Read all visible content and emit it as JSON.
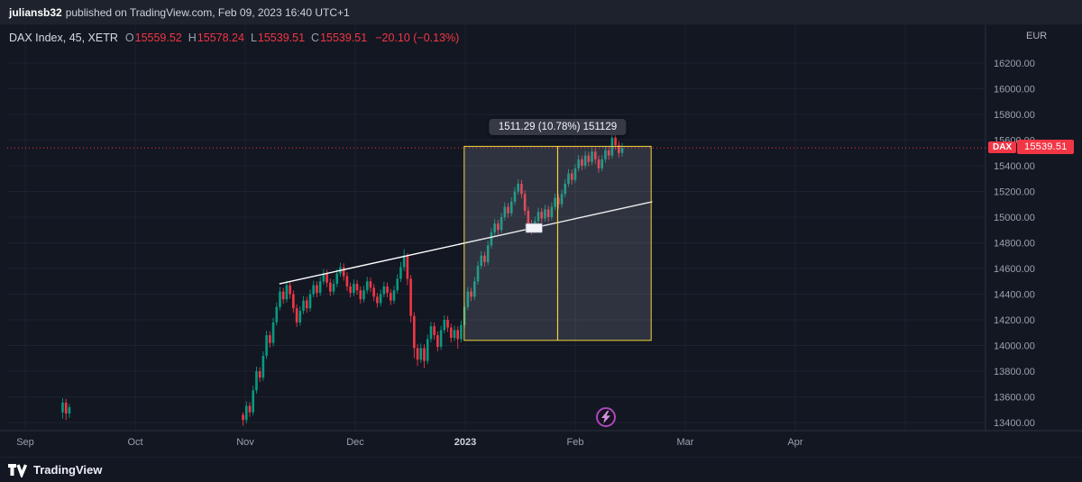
{
  "publish_bar": {
    "username": "juliansb32",
    "text": "published on TradingView.com, Feb 09, 2023 16:40 UTC+1"
  },
  "header": {
    "symbol": "DAX Index, 45, XETR",
    "ohlc": [
      {
        "label": "O",
        "value": "15559.52"
      },
      {
        "label": "H",
        "value": "15578.24"
      },
      {
        "label": "L",
        "value": "15539.51"
      },
      {
        "label": "C",
        "value": "15539.51"
      }
    ],
    "change": "−20.10 (−0.13%)"
  },
  "axis": {
    "currency": "EUR",
    "time_ticks": [
      {
        "label": "Sep",
        "t": 0
      },
      {
        "label": "Oct",
        "t": 1
      },
      {
        "label": "Nov",
        "t": 2
      },
      {
        "label": "Dec",
        "t": 3
      },
      {
        "label": "2023",
        "t": 4
      },
      {
        "label": "Feb",
        "t": 5
      },
      {
        "label": "Mar",
        "t": 6
      },
      {
        "label": "Apr",
        "t": 7
      }
    ]
  },
  "price_label": {
    "tag": "DAX",
    "value": "15539.51",
    "color": "#f23645"
  },
  "footer": {
    "brand": "TradingView"
  },
  "chart_data": {
    "type": "candlestick",
    "title": "DAX Index, 45, XETR",
    "interval_minutes": 45,
    "exchange": "XETR",
    "currency": "EUR",
    "ohlc_current": {
      "open": 15559.52,
      "high": 15578.24,
      "low": 15539.51,
      "close": 15539.51,
      "change": -20.1,
      "change_pct": -0.13
    },
    "last_price": 15539.51,
    "ylim": [
      13300,
      16300
    ],
    "price_gridlines": [
      16200,
      16000,
      15800,
      15600,
      15400,
      15200,
      15000,
      14800,
      14600,
      14400,
      14200,
      14000,
      13800,
      13600,
      13400
    ],
    "x_months": [
      "Sep",
      "Oct",
      "Nov",
      "Dec",
      "2023",
      "Feb",
      "Mar",
      "Apr"
    ],
    "colors": {
      "up": "#089981",
      "down": "#f23645",
      "tool_yellow": "#f0d43f",
      "trend_white": "#ffffff"
    },
    "clusters": [
      {
        "t0": 0.34,
        "dt": 0.0305,
        "candles": [
          [
            13480,
            13590,
            13430,
            13555
          ],
          [
            13555,
            13585,
            13420,
            13470
          ],
          [
            13470,
            13545,
            13435,
            13520
          ]
        ]
      },
      {
        "t0": 1.98,
        "dt": 0.0305,
        "candles": [
          [
            13460,
            13480,
            13375,
            13420
          ],
          [
            13420,
            13565,
            13395,
            13530
          ],
          [
            13530,
            13560,
            13445,
            13480
          ],
          [
            13480,
            13685,
            13455,
            13650
          ],
          [
            13650,
            13835,
            13625,
            13800
          ],
          [
            13800,
            13830,
            13715,
            13750
          ],
          [
            13750,
            13955,
            13725,
            13920
          ],
          [
            13920,
            14115,
            13895,
            14080
          ],
          [
            14080,
            14110,
            13985,
            14020
          ],
          [
            14020,
            14215,
            13995,
            14180
          ],
          [
            14180,
            14335,
            14155,
            14300
          ],
          [
            14300,
            14455,
            14275,
            14420
          ],
          [
            14420,
            14450,
            14325,
            14360
          ],
          [
            14360,
            14505,
            14335,
            14470
          ],
          [
            14470,
            14500,
            14365,
            14400
          ],
          [
            14400,
            14430,
            14255,
            14290
          ],
          [
            14290,
            14320,
            14145,
            14180
          ],
          [
            14180,
            14305,
            14155,
            14270
          ],
          [
            14270,
            14385,
            14245,
            14350
          ],
          [
            14350,
            14380,
            14255,
            14290
          ],
          [
            14290,
            14435,
            14265,
            14400
          ],
          [
            14400,
            14505,
            14375,
            14470
          ],
          [
            14470,
            14500,
            14375,
            14410
          ],
          [
            14410,
            14535,
            14385,
            14500
          ],
          [
            14500,
            14595,
            14475,
            14560
          ],
          [
            14560,
            14590,
            14455,
            14490
          ],
          [
            14490,
            14520,
            14385,
            14420
          ],
          [
            14420,
            14515,
            14395,
            14480
          ],
          [
            14480,
            14595,
            14455,
            14560
          ],
          [
            14560,
            14645,
            14535,
            14610
          ],
          [
            14610,
            14640,
            14505,
            14540
          ],
          [
            14540,
            14570,
            14425,
            14460
          ],
          [
            14460,
            14490,
            14375,
            14410
          ],
          [
            14410,
            14515,
            14385,
            14480
          ],
          [
            14480,
            14510,
            14395,
            14430
          ],
          [
            14430,
            14460,
            14325,
            14360
          ],
          [
            14360,
            14465,
            14335,
            14430
          ],
          [
            14430,
            14535,
            14405,
            14500
          ],
          [
            14500,
            14530,
            14415,
            14450
          ],
          [
            14450,
            14480,
            14345,
            14380
          ],
          [
            14380,
            14410,
            14295,
            14330
          ],
          [
            14330,
            14435,
            14305,
            14400
          ],
          [
            14400,
            14495,
            14375,
            14460
          ],
          [
            14460,
            14490,
            14375,
            14410
          ],
          [
            14410,
            14440,
            14315,
            14350
          ],
          [
            14350,
            14465,
            14325,
            14430
          ],
          [
            14430,
            14555,
            14405,
            14520
          ],
          [
            14520,
            14650,
            14495,
            14610
          ],
          [
            14610,
            14750,
            14580,
            14700
          ],
          [
            14700,
            14720,
            14470,
            14520
          ],
          [
            14520,
            14550,
            14180,
            14230
          ],
          [
            14230,
            14260,
            13900,
            13980
          ],
          [
            13980,
            14010,
            13840,
            13890
          ],
          [
            13890,
            14015,
            13865,
            13980
          ],
          [
            13980,
            14010,
            13825,
            13880
          ],
          [
            13880,
            14085,
            13855,
            14050
          ],
          [
            14050,
            14185,
            14025,
            14150
          ],
          [
            14150,
            14180,
            14045,
            14080
          ],
          [
            14080,
            14110,
            13955,
            13990
          ],
          [
            13990,
            14155,
            13965,
            14120
          ],
          [
            14120,
            14235,
            14095,
            14200
          ],
          [
            14200,
            14230,
            14105,
            14140
          ],
          [
            14140,
            14170,
            14025,
            14060
          ],
          [
            14060,
            14155,
            14035,
            14120
          ],
          [
            14120,
            14150,
            13975,
            14050
          ],
          [
            14050,
            14195,
            14025,
            14160
          ],
          [
            14160,
            14335,
            14135,
            14300
          ],
          [
            14300,
            14455,
            14275,
            14420
          ],
          [
            14420,
            14450,
            14345,
            14380
          ],
          [
            14380,
            14535,
            14355,
            14500
          ],
          [
            14500,
            14655,
            14475,
            14620
          ],
          [
            14620,
            14735,
            14595,
            14700
          ],
          [
            14700,
            14730,
            14615,
            14650
          ],
          [
            14650,
            14815,
            14625,
            14780
          ],
          [
            14780,
            14915,
            14755,
            14880
          ],
          [
            14880,
            14985,
            14855,
            14950
          ],
          [
            14950,
            14980,
            14865,
            14900
          ],
          [
            14900,
            15035,
            14875,
            15000
          ],
          [
            15000,
            15115,
            14975,
            15080
          ],
          [
            15080,
            15110,
            14995,
            15030
          ],
          [
            15030,
            15155,
            15005,
            15120
          ],
          [
            15120,
            15235,
            15095,
            15200
          ],
          [
            15200,
            15295,
            15175,
            15260
          ],
          [
            15260,
            15290,
            15145,
            15180
          ],
          [
            15180,
            15210,
            15015,
            15050
          ],
          [
            15050,
            15080,
            14900,
            14950
          ],
          [
            14950,
            14980,
            14865,
            14900
          ],
          [
            14900,
            15005,
            14875,
            14970
          ],
          [
            14970,
            15075,
            14945,
            15040
          ],
          [
            15040,
            15070,
            14955,
            14990
          ],
          [
            14990,
            15095,
            14965,
            15060
          ],
          [
            15060,
            15090,
            14965,
            15000
          ],
          [
            15000,
            15115,
            14975,
            15080
          ],
          [
            15080,
            15185,
            15055,
            15150
          ],
          [
            15150,
            15180,
            15065,
            15100
          ],
          [
            15100,
            15215,
            15075,
            15180
          ],
          [
            15180,
            15295,
            15155,
            15260
          ],
          [
            15260,
            15375,
            15235,
            15340
          ],
          [
            15340,
            15370,
            15255,
            15290
          ],
          [
            15290,
            15415,
            15265,
            15380
          ],
          [
            15380,
            15485,
            15355,
            15450
          ],
          [
            15450,
            15480,
            15365,
            15400
          ],
          [
            15400,
            15515,
            15375,
            15480
          ],
          [
            15480,
            15510,
            15395,
            15430
          ],
          [
            15430,
            15545,
            15405,
            15510
          ],
          [
            15510,
            15540,
            15415,
            15450
          ],
          [
            15450,
            15480,
            15345,
            15380
          ],
          [
            15380,
            15485,
            15355,
            15450
          ],
          [
            15450,
            15555,
            15425,
            15520
          ],
          [
            15520,
            15550,
            15445,
            15480
          ],
          [
            15480,
            15690,
            15455,
            15620
          ],
          [
            15620,
            15650,
            15525,
            15560
          ],
          [
            15560,
            15590,
            15465,
            15500
          ],
          [
            15500,
            15578,
            15470,
            15540
          ]
        ]
      }
    ],
    "trendline": {
      "points": [
        {
          "t": 2.31,
          "price": 14480
        },
        {
          "t": 5.7,
          "price": 15120
        }
      ],
      "color": "#ffffff"
    },
    "range_box": {
      "t1": 3.99,
      "t2": 5.69,
      "price1": 14040,
      "price2": 15551.29,
      "label": "1511.29 (10.78%) 151129",
      "color": "#f0d43f"
    },
    "marker_box": {
      "t1": 4.55,
      "t2": 4.7,
      "price1": 14880,
      "price2": 14950
    },
    "idea_icon": {
      "t": 5.28,
      "price": 13440
    }
  }
}
